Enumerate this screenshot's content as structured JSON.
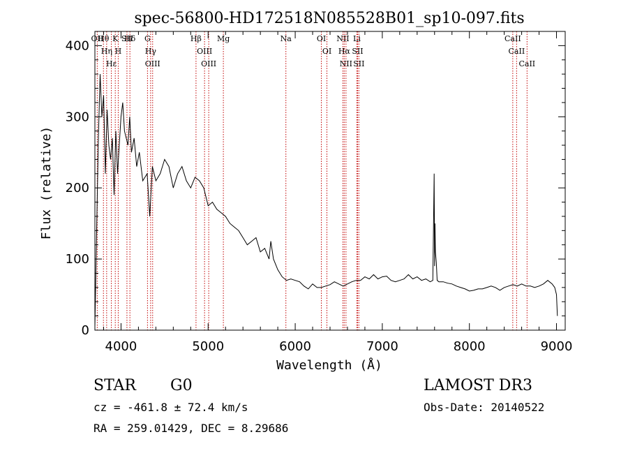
{
  "chart_data": {
    "type": "line",
    "title": "spec-56800-HD172518N085528B01_sp10-097.fits",
    "xlabel": "Wavelength (Å)",
    "ylabel": "Flux (relative)",
    "xlim": [
      3700,
      9100
    ],
    "ylim": [
      0,
      420
    ],
    "xticks": [
      4000,
      5000,
      6000,
      7000,
      8000,
      9000
    ],
    "yticks": [
      0,
      100,
      200,
      300,
      400
    ],
    "series": [
      {
        "name": "flux",
        "x": [
          3700,
          3720,
          3740,
          3760,
          3780,
          3800,
          3820,
          3840,
          3860,
          3880,
          3900,
          3920,
          3940,
          3960,
          3980,
          4000,
          4020,
          4040,
          4060,
          4080,
          4100,
          4120,
          4150,
          4180,
          4210,
          4250,
          4300,
          4330,
          4360,
          4400,
          4450,
          4500,
          4550,
          4600,
          4650,
          4700,
          4750,
          4800,
          4850,
          4900,
          4950,
          5000,
          5050,
          5100,
          5150,
          5200,
          5250,
          5300,
          5350,
          5400,
          5450,
          5500,
          5550,
          5600,
          5650,
          5700,
          5720,
          5750,
          5800,
          5850,
          5900,
          5950,
          6000,
          6050,
          6100,
          6150,
          6200,
          6250,
          6300,
          6350,
          6400,
          6450,
          6500,
          6550,
          6600,
          6650,
          6700,
          6750,
          6800,
          6850,
          6900,
          6950,
          7000,
          7050,
          7100,
          7150,
          7200,
          7250,
          7300,
          7350,
          7400,
          7450,
          7500,
          7550,
          7580,
          7595,
          7600,
          7605,
          7610,
          7620,
          7630,
          7650,
          7700,
          7750,
          7800,
          7850,
          7900,
          7950,
          8000,
          8050,
          8100,
          8150,
          8200,
          8250,
          8300,
          8350,
          8400,
          8450,
          8500,
          8550,
          8600,
          8650,
          8700,
          8750,
          8800,
          8850,
          8900,
          8950,
          8980,
          9000,
          9010
        ],
        "y": [
          5,
          140,
          270,
          360,
          300,
          330,
          220,
          310,
          260,
          240,
          270,
          190,
          280,
          220,
          260,
          300,
          320,
          280,
          270,
          260,
          300,
          250,
          270,
          230,
          250,
          210,
          220,
          160,
          230,
          210,
          220,
          240,
          230,
          200,
          220,
          230,
          210,
          200,
          215,
          210,
          200,
          175,
          180,
          170,
          165,
          160,
          150,
          145,
          140,
          130,
          120,
          125,
          130,
          110,
          115,
          100,
          125,
          100,
          85,
          75,
          70,
          72,
          70,
          68,
          62,
          58,
          65,
          60,
          60,
          62,
          64,
          68,
          65,
          62,
          65,
          68,
          70,
          70,
          75,
          72,
          78,
          72,
          75,
          76,
          70,
          68,
          70,
          72,
          78,
          72,
          75,
          70,
          72,
          68,
          70,
          220,
          90,
          150,
          110,
          95,
          70,
          68,
          68,
          66,
          65,
          62,
          60,
          58,
          55,
          56,
          58,
          58,
          60,
          62,
          60,
          56,
          60,
          62,
          64,
          62,
          65,
          62,
          62,
          60,
          62,
          65,
          70,
          65,
          60,
          50,
          20
        ]
      }
    ],
    "spectral_lines": [
      {
        "label": "Hθ",
        "wavelength": 3798
      },
      {
        "label": "Hη",
        "wavelength": 3835
      },
      {
        "label": "Hε",
        "wavelength": 3889
      },
      {
        "label": "K",
        "wavelength": 3934
      },
      {
        "label": "H",
        "wavelength": 3968
      },
      {
        "label": "Hδ",
        "wavelength": 4102
      },
      {
        "label": "OII",
        "wavelength": 3727
      },
      {
        "label": "SII",
        "wavelength": 4068
      },
      {
        "label": "G",
        "wavelength": 4304
      },
      {
        "label": "Hγ",
        "wavelength": 4340
      },
      {
        "label": "OIII",
        "wavelength": 4363
      },
      {
        "label": "Hβ",
        "wavelength": 4861
      },
      {
        "label": "OIII",
        "wavelength": 4959
      },
      {
        "label": "OIII",
        "wavelength": 5007
      },
      {
        "label": "Mg",
        "wavelength": 5175
      },
      {
        "label": "Na",
        "wavelength": 5893
      },
      {
        "label": "OI",
        "wavelength": 6300
      },
      {
        "label": "OI",
        "wavelength": 6364
      },
      {
        "label": "NII",
        "wavelength": 6548
      },
      {
        "label": "Hα",
        "wavelength": 6563
      },
      {
        "label": "NII",
        "wavelength": 6583
      },
      {
        "label": "Li",
        "wavelength": 6708
      },
      {
        "label": "SII",
        "wavelength": 6716
      },
      {
        "label": "SII",
        "wavelength": 6731
      },
      {
        "label": "CaII",
        "wavelength": 8498
      },
      {
        "label": "CaII",
        "wavelength": 8542
      },
      {
        "label": "CaII",
        "wavelength": 8662
      }
    ]
  },
  "info": {
    "class": "STAR",
    "subclass": "G0",
    "survey": "LAMOST DR3",
    "cz": "cz = -461.8 ± 72.4 km/s",
    "obs_date": "Obs-Date: 20140522",
    "radec": "RA = 259.01429, DEC =   8.29686"
  }
}
